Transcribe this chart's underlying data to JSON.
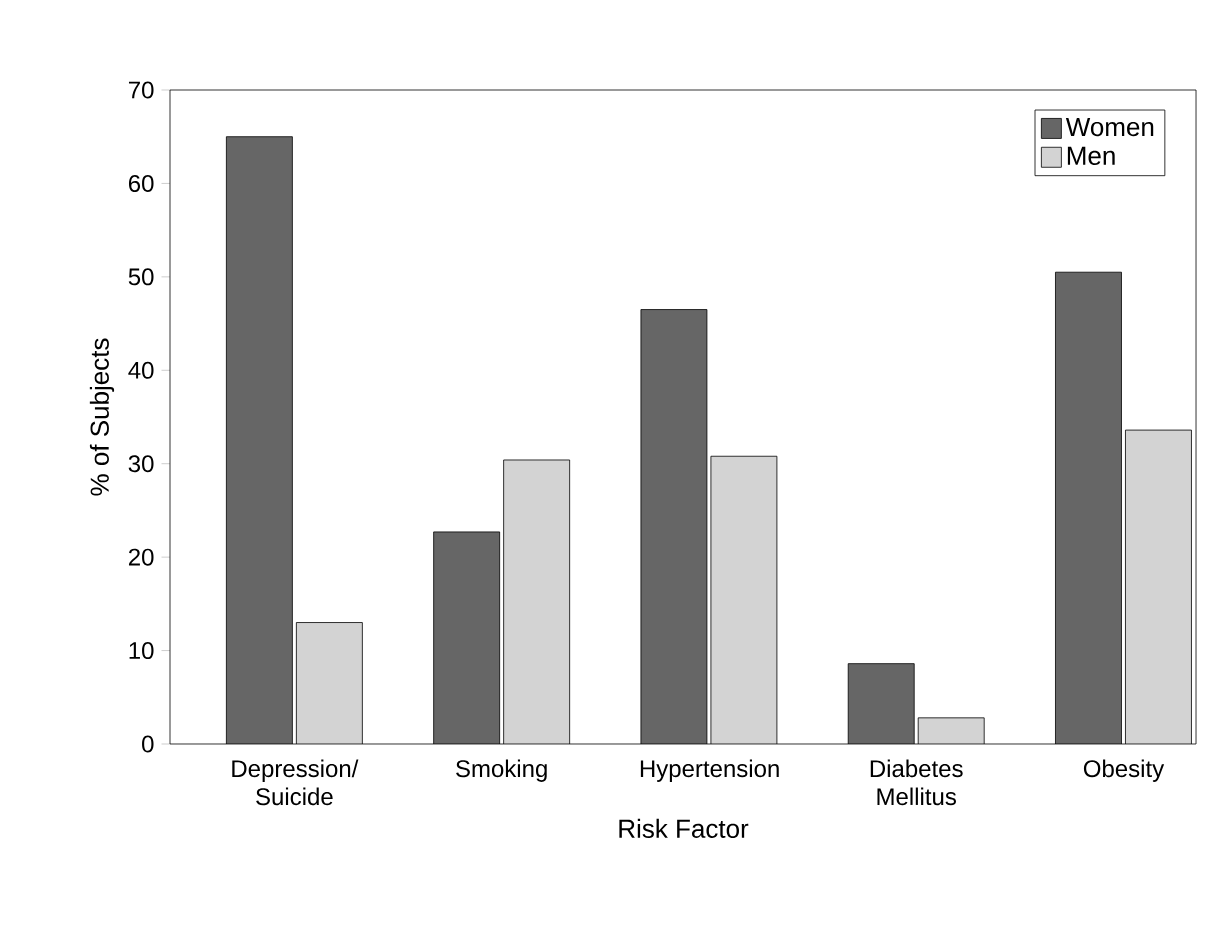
{
  "chart_data": {
    "type": "bar",
    "xlabel": "Risk Factor",
    "ylabel": "% of Subjects",
    "categories": [
      "Depression/ Suicide",
      "Smoking",
      "Hypertension",
      "Diabetes Mellitus",
      "Obesity"
    ],
    "series": [
      {
        "name": "Women",
        "color": "#666666",
        "values": [
          65,
          22.7,
          46.5,
          8.6,
          50.5
        ]
      },
      {
        "name": "Men",
        "color": "#d3d3d3",
        "values": [
          13,
          30.4,
          30.8,
          2.8,
          33.6
        ]
      }
    ],
    "ylim": [
      0,
      70
    ],
    "yticks": [
      0,
      10,
      20,
      30,
      40,
      50,
      60,
      70
    ],
    "grid": false,
    "legend": "top right"
  }
}
